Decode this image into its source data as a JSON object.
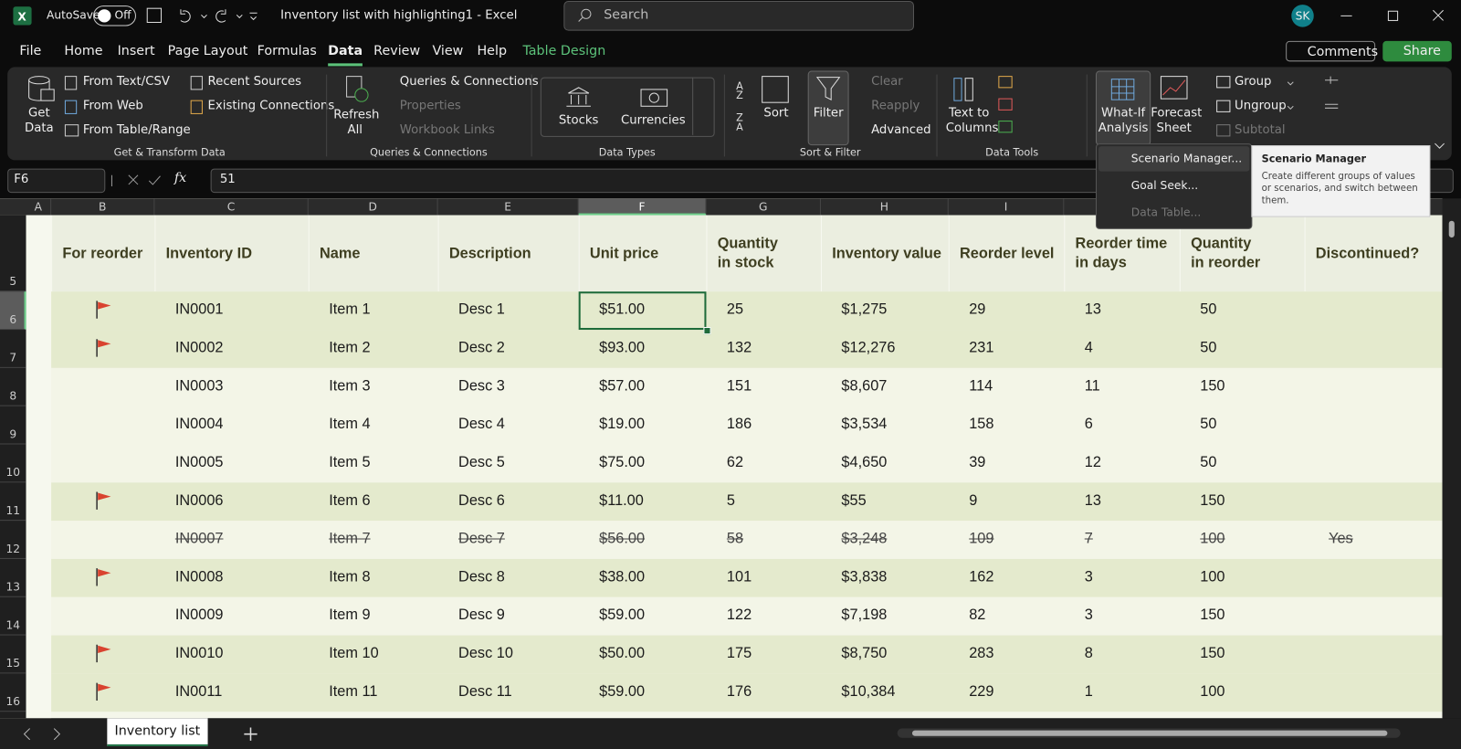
{
  "title_bar": {
    "autosave": "AutoSave",
    "toggle": "Off",
    "document": "Inventory list with highlighting1  -  Excel",
    "search": "Search",
    "user": "SK"
  },
  "menu": {
    "tabs": [
      "File",
      "Home",
      "Insert",
      "Page Layout",
      "Formulas",
      "Data",
      "Review",
      "View",
      "Help",
      "Table Design"
    ],
    "selected": 5,
    "comments": "Comments",
    "share": "Share"
  },
  "ribbon": {
    "groups": [
      {
        "label": "Get & Transform Data",
        "buttons": [
          "Get Data",
          "From Text/CSV",
          "From Web",
          "From Table/Range",
          "Recent Sources",
          "Existing Connections"
        ]
      },
      {
        "label": "Queries & Connections",
        "buttons": [
          "Refresh All",
          "Queries & Connections",
          "Properties",
          "Workbook Links"
        ]
      },
      {
        "label": "Data Types",
        "buttons": [
          "Stocks",
          "Currencies"
        ]
      },
      {
        "label": "Sort & Filter",
        "buttons": [
          "Sort",
          "Filter",
          "Clear",
          "Reapply",
          "Advanced"
        ]
      },
      {
        "label": "Data Tools",
        "buttons": [
          "Text to Columns"
        ]
      },
      {
        "buttons": [
          "What-If Analysis",
          "Forecast Sheet"
        ]
      },
      {
        "buttons": [
          "Group",
          "Ungroup",
          "Subtotal"
        ]
      }
    ]
  },
  "what_if_menu": {
    "items": [
      "Scenario Manager...",
      "Goal Seek...",
      "Data Table..."
    ]
  },
  "tooltip": {
    "title": "Scenario Manager",
    "text": "Create different groups of values or scenarios, and switch between them."
  },
  "formula_bar": {
    "name_box": "F6",
    "function_label": "fx",
    "value": "51"
  },
  "sheet": {
    "columns": [
      "A",
      "B",
      "C",
      "D",
      "E",
      "F",
      "G",
      "H",
      "I"
    ],
    "selected_column": 5,
    "row_numbers": [
      "5",
      "6",
      "7",
      "8",
      "9",
      "10",
      "11",
      "12",
      "13",
      "14",
      "15",
      "16"
    ],
    "headers": [
      [
        "For reorder"
      ],
      [
        "Inventory ID"
      ],
      [
        "Name"
      ],
      [
        "Description"
      ],
      [
        "Unit price"
      ],
      [
        "Quantity",
        "in stock"
      ],
      [
        "Inventory value"
      ],
      [
        "Reorder level"
      ],
      [
        "Reorder time",
        "in days"
      ],
      [
        "Quantity",
        "in reorder"
      ],
      [
        "Discontinued?"
      ]
    ],
    "rows": [
      {
        "flag": true,
        "cells": [
          "IN0001",
          "Item 1",
          "Desc 1",
          "$51.00",
          "25",
          "$1,275",
          "29",
          "13",
          "50"
        ]
      },
      {
        "flag": true,
        "cells": [
          "IN0002",
          "Item 2",
          "Desc 2",
          "$93.00",
          "132",
          "$12,276",
          "231",
          "4",
          "50"
        ]
      },
      {
        "flag": false,
        "cells": [
          "IN0003",
          "Item 3",
          "Desc 3",
          "$57.00",
          "151",
          "$8,607",
          "114",
          "11",
          "150"
        ]
      },
      {
        "flag": false,
        "cells": [
          "IN0004",
          "Item 4",
          "Desc 4",
          "$19.00",
          "186",
          "$3,534",
          "158",
          "6",
          "50"
        ]
      },
      {
        "flag": false,
        "cells": [
          "IN0005",
          "Item 5",
          "Desc 5",
          "$75.00",
          "62",
          "$4,650",
          "39",
          "12",
          "50"
        ]
      },
      {
        "flag": true,
        "cells": [
          "IN0006",
          "Item 6",
          "Desc 6",
          "$11.00",
          "5",
          "$55",
          "9",
          "13",
          "150"
        ]
      },
      {
        "flag": false,
        "strike": true,
        "cells": [
          "IN0007",
          "Item 7",
          "Desc 7",
          "$56.00",
          "58",
          "$3,248",
          "109",
          "7",
          "100",
          "Yes"
        ]
      },
      {
        "flag": true,
        "cells": [
          "IN0008",
          "Item 8",
          "Desc 8",
          "$38.00",
          "101",
          "$3,838",
          "162",
          "3",
          "100"
        ]
      },
      {
        "flag": false,
        "cells": [
          "IN0009",
          "Item 9",
          "Desc 9",
          "$59.00",
          "122",
          "$7,198",
          "82",
          "3",
          "150"
        ]
      },
      {
        "flag": true,
        "cells": [
          "IN0010",
          "Item 10",
          "Desc 10",
          "$50.00",
          "175",
          "$8,750",
          "283",
          "8",
          "150"
        ]
      },
      {
        "flag": true,
        "cells": [
          "IN0011",
          "Item 11",
          "Desc 11",
          "$59.00",
          "176",
          "$10,384",
          "229",
          "1",
          "100"
        ]
      }
    ]
  },
  "sheet_tabs": {
    "tabs": [
      "Inventory list"
    ]
  }
}
